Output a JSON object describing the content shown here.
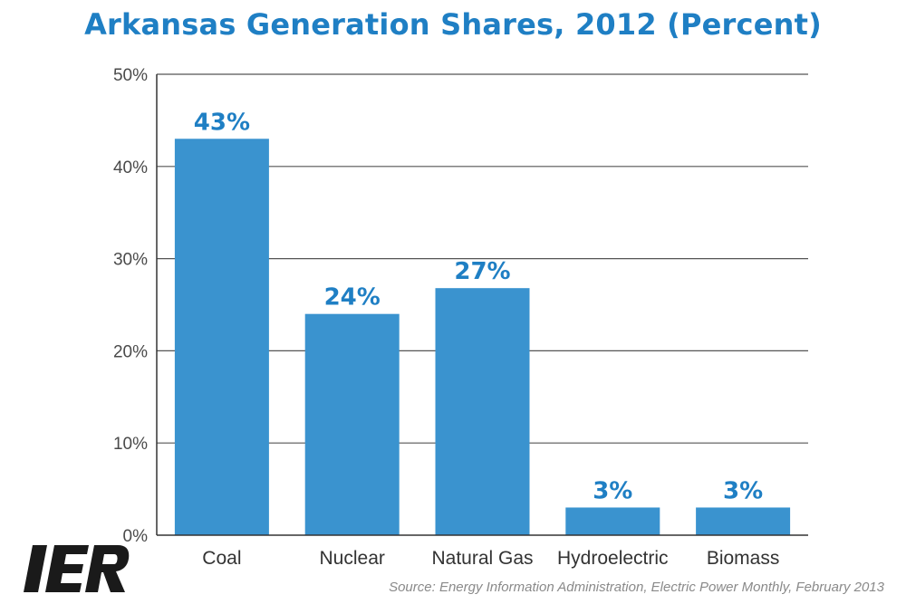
{
  "header": {
    "title": "Arkansas Generation Shares, 2012 (Percent)"
  },
  "logo": {
    "text": "IER",
    "color": "#1a1a1a",
    "accent": "#1f7fc4"
  },
  "footer": {
    "source": "Source: Energy Information Administration, Electric Power Monthly, February 2013"
  },
  "colors": {
    "bar": "#3a93cf",
    "data_label": "#1f7fc4",
    "grid": "#555555",
    "title": "#1f7fc4"
  },
  "chart_data": {
    "type": "bar",
    "title": "Arkansas Generation Shares, 2012 (Percent)",
    "xlabel": "",
    "ylabel": "",
    "categories": [
      "Coal",
      "Nuclear",
      "Natural Gas",
      "Hydroelectric",
      "Biomass"
    ],
    "values": [
      43,
      24,
      26.8,
      3,
      3
    ],
    "data_labels": [
      "43%",
      "24%",
      "27%",
      "3%",
      "3%"
    ],
    "ylim": [
      0,
      50
    ],
    "yticks": [
      0,
      10,
      20,
      30,
      40,
      50
    ],
    "ytick_labels": [
      "0%",
      "10%",
      "20%",
      "30%",
      "40%",
      "50%"
    ],
    "grid": true,
    "legend": "none"
  }
}
